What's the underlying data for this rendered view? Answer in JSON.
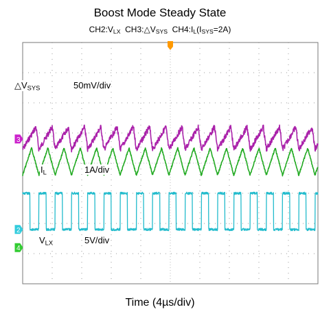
{
  "chart_data": {
    "type": "line",
    "title": "Boost Mode Steady State",
    "subtitle": {
      "ch2_prefix": "CH2:V",
      "ch2_sub": "LX",
      "ch3_prefix": "CH3:△V",
      "ch3_sub": "SYS",
      "ch4_prefix": "CH4:I",
      "ch4_sub": "L",
      "ch4_cond_prefix": "(I",
      "ch4_cond_sub": "SYS",
      "ch4_cond_suffix": "=2A)"
    },
    "xlabel": "Time (4µs/div)",
    "grid": true,
    "divisions": {
      "x": 10,
      "y": 8
    },
    "x_range_us": [
      0,
      40
    ],
    "switching_period_us": 2.2,
    "channel_markers": [
      {
        "channel": "3",
        "color": "#cc22cc",
        "level_div": 3.2
      },
      {
        "channel": "2",
        "color": "#33ccdd",
        "level_div": 6.2
      },
      {
        "channel": "4",
        "color": "#33cc33",
        "level_div": 6.8
      }
    ],
    "trigger_marker_color": "#ff9900",
    "series": [
      {
        "name": "△V_SYS",
        "channel": "CH3",
        "color": "#aa22aa",
        "scale": "50mV/div",
        "waveform": "sawtooth",
        "low_div": 3.55,
        "high_div": 2.8
      },
      {
        "name": "I_L",
        "channel": "CH4",
        "color": "#22aa22",
        "scale": "1A/div",
        "waveform": "triangle",
        "low_div": 4.4,
        "high_div": 3.5
      },
      {
        "name": "V_LX",
        "channel": "CH2",
        "color": "#22bbcc",
        "scale": "5V/div",
        "waveform": "square",
        "low_div": 6.2,
        "high_div": 5.0,
        "duty": 0.55
      }
    ],
    "annotations": {
      "vsys_prefix": "△V",
      "vsys_sub": "SYS",
      "vsys_scale": "50mV/div",
      "il_prefix": "I",
      "il_sub": "L",
      "il_scale": "1A/div",
      "vlx_prefix": "V",
      "vlx_sub": "LX",
      "vlx_scale": "5V/div"
    }
  }
}
